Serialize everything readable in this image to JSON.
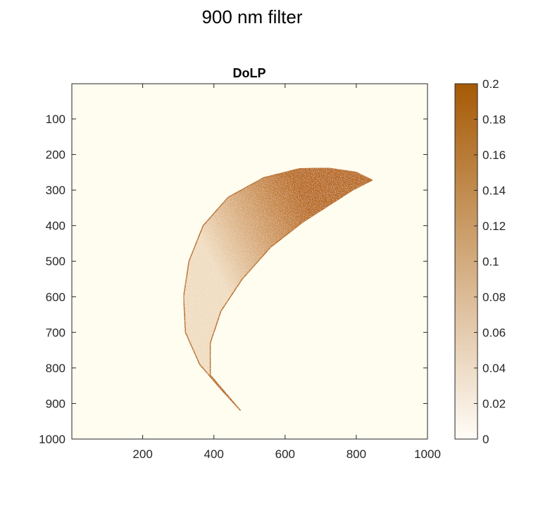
{
  "figure_title": "900 nm filter",
  "chart_data": {
    "type": "heatmap",
    "title": "DoLP",
    "xlabel": "",
    "ylabel": "",
    "xlim": [
      1,
      1000
    ],
    "ylim": [
      1,
      1000
    ],
    "y_reversed": true,
    "x_ticks": [
      200,
      400,
      600,
      800,
      1000
    ],
    "y_ticks": [
      100,
      200,
      300,
      400,
      500,
      600,
      700,
      800,
      900,
      1000
    ],
    "x_tick_labels": [
      "200",
      "400",
      "600",
      "800",
      "1000"
    ],
    "y_tick_labels": [
      "100",
      "200",
      "300",
      "400",
      "500",
      "600",
      "700",
      "800",
      "900",
      "1000"
    ],
    "background_value": 0,
    "region": {
      "shape": "crescent",
      "outer_edge": [
        [
          475,
          920
        ],
        [
          420,
          860
        ],
        [
          360,
          790
        ],
        [
          320,
          700
        ],
        [
          315,
          600
        ],
        [
          330,
          500
        ],
        [
          370,
          400
        ],
        [
          440,
          320
        ],
        [
          540,
          265
        ],
        [
          640,
          240
        ],
        [
          720,
          238
        ],
        [
          800,
          250
        ],
        [
          845,
          272
        ]
      ],
      "inner_edge": [
        [
          845,
          272
        ],
        [
          790,
          300
        ],
        [
          720,
          345
        ],
        [
          650,
          390
        ],
        [
          560,
          460
        ],
        [
          480,
          550
        ],
        [
          420,
          640
        ],
        [
          390,
          730
        ],
        [
          390,
          820
        ],
        [
          475,
          920
        ]
      ],
      "typical_value_near_outer_edge": 0.07,
      "typical_value_near_inner_edge": 0.17
    },
    "colorbar": {
      "limits": [
        0,
        0.2
      ],
      "ticks": [
        0,
        0.02,
        0.04,
        0.06,
        0.08,
        0.1,
        0.12,
        0.14,
        0.16,
        0.18,
        0.2
      ],
      "tick_labels": [
        "0",
        "0.02",
        "0.04",
        "0.06",
        "0.08",
        "0.1",
        "0.12",
        "0.14",
        "0.16",
        "0.18",
        "0.2"
      ],
      "color_low": "#fffcf7",
      "color_high": "#a65a05"
    },
    "colors": {
      "axes_background": "#fffdf0",
      "region_light": "#f0dcc0",
      "region_dark": "#b8691a"
    }
  }
}
